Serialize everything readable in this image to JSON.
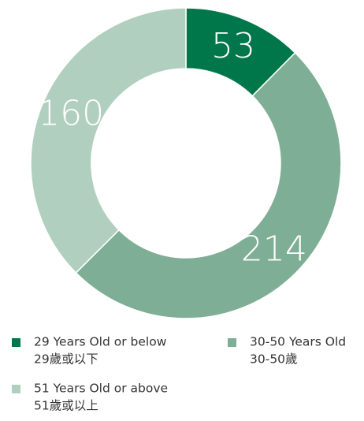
{
  "chart_data": {
    "type": "donut",
    "categories": [
      {
        "en": "29 Years Old or below",
        "zh": "29歲或以下"
      },
      {
        "en": "30-50 Years Old",
        "zh": "30-50歲"
      },
      {
        "en": "51 Years Old or above",
        "zh": "51歲或以上"
      }
    ],
    "values": [
      53,
      214,
      160
    ],
    "colors": [
      "#00774a",
      "#7eae95",
      "#b1cfbf"
    ]
  }
}
